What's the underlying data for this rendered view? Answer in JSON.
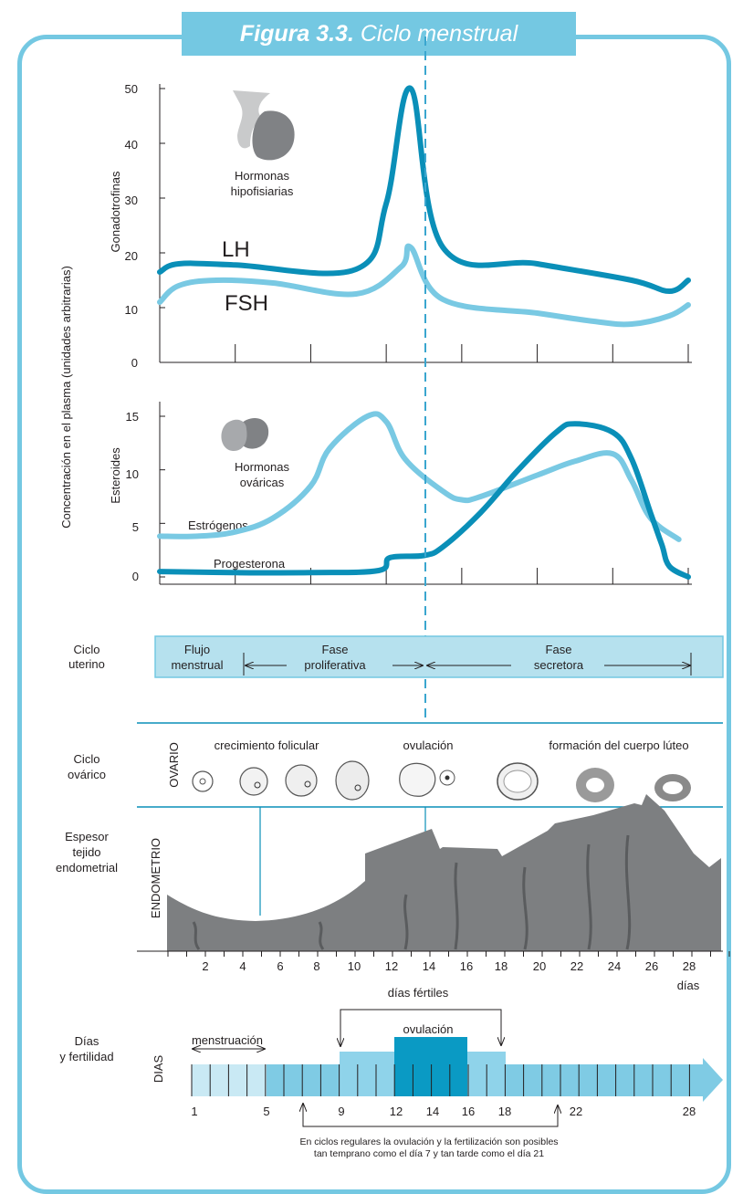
{
  "title": {
    "bold": "Figura 3.3.",
    "rest": " Ciclo menstrual"
  },
  "colors": {
    "frame": "#74c8e2",
    "dark_line": "#0a8fb8",
    "light_line": "#79c9e3",
    "uterine_bar": "#b6e1ee",
    "endometrium": "#7d7f81",
    "days_bar": "#7fcbe4",
    "fertile_block": "#8fd3ea",
    "ovulation_block": "#0a9ac4"
  },
  "top_chart": {
    "y_axis_title": "Concentración en el plasma (unidades arbitrarias)",
    "ylabel": "Gonadotrofinas",
    "ticks": [
      "50",
      "40",
      "30",
      "20",
      "10",
      "0"
    ],
    "caption_1": "Hormonas",
    "caption_2": "hipofisiarias",
    "lh_label": "LH",
    "fsh_label": "FSH"
  },
  "steroid_chart": {
    "ylabel": "Esteroides",
    "ticks": [
      "15",
      "10",
      "5",
      "0"
    ],
    "caption_1": "Hormonas",
    "caption_2": "ováricas",
    "estrogen_label": "Estrógenos",
    "progesterone_label": "Progesterona"
  },
  "chart_data": [
    {
      "type": "line",
      "ylabel": "Gonadotrofinas",
      "ylim": [
        0,
        50
      ],
      "x_unit": "día",
      "series": [
        {
          "name": "LH",
          "x": [
            0,
            1,
            4,
            10.4,
            12,
            13.3,
            15,
            20,
            25,
            27,
            28
          ],
          "values": [
            16.5,
            18,
            17.8,
            17,
            29,
            50,
            21,
            18,
            15,
            13,
            15
          ]
        },
        {
          "name": "FSH",
          "x": [
            0,
            1,
            3,
            6,
            10.4,
            12.8,
            13.3,
            15,
            20,
            23,
            25,
            27,
            28
          ],
          "values": [
            11,
            14,
            15,
            14.5,
            12.5,
            17.5,
            21,
            11.5,
            9,
            7.5,
            7,
            8.5,
            10.5
          ]
        }
      ]
    },
    {
      "type": "line",
      "ylabel": "Esteroides",
      "ylim": [
        0,
        15
      ],
      "x_unit": "día",
      "series": [
        {
          "name": "Estrógenos",
          "x": [
            0,
            2,
            4,
            6,
            8,
            9,
            11,
            12,
            13,
            15,
            16,
            17,
            20,
            22,
            24,
            25,
            26,
            27.5
          ],
          "values": [
            3.8,
            3.8,
            4.2,
            5.5,
            8.5,
            12,
            15,
            14.5,
            11,
            8,
            7.2,
            7.5,
            9.5,
            10.8,
            11.5,
            9,
            5.5,
            3.5
          ]
        },
        {
          "name": "Progesterona",
          "x": [
            0,
            4,
            8,
            11.6,
            12.2,
            14,
            15,
            17,
            19,
            21,
            22,
            24,
            25,
            26,
            26.6,
            27,
            28
          ],
          "values": [
            0.5,
            0.4,
            0.4,
            0.6,
            1.8,
            2,
            2.8,
            6,
            10,
            13.5,
            14.3,
            13.5,
            11,
            6,
            3,
            1,
            0
          ]
        }
      ]
    }
  ],
  "uterine": {
    "label_1": "Ciclo",
    "label_2": "uterino",
    "flow_1": "Flujo",
    "flow_2": "menstrual",
    "prolif_1": "Fase",
    "prolif_2": "proliferativa",
    "secretory_1": "Fase",
    "secretory_2": "secretora"
  },
  "ovarian": {
    "label_1": "Ciclo",
    "label_2": "ovárico",
    "vertical": "OVARIO",
    "growth": "crecimiento folicular",
    "ovulation": "ovulación",
    "luteal": "formación del cuerpo lúteo"
  },
  "endometrium": {
    "label_1": "Espesor",
    "label_2": "tejido",
    "label_3": "endometrial",
    "vertical": "ENDOMETRIO",
    "day_ticks": [
      "2",
      "4",
      "6",
      "8",
      "10",
      "12",
      "14",
      "16",
      "18",
      "20",
      "22",
      "24",
      "26",
      "28"
    ],
    "days_word": "días"
  },
  "fertility": {
    "label_1": "Días",
    "label_2": "y fertilidad",
    "vertical": "DIAS",
    "fertile_days": "días fértiles",
    "menstruation": "menstruación",
    "ovulation": "ovulación",
    "day_labels": [
      "1",
      "5",
      "9",
      "12",
      "14",
      "16",
      "18",
      "22",
      "28"
    ],
    "note_1": "En ciclos regulares la ovulación y la fertilización son posibles",
    "note_2": "tan temprano como el día 7 y tan tarde como el día 21"
  }
}
